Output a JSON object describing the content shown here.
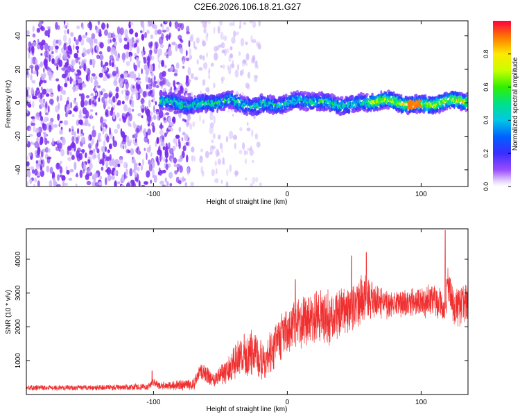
{
  "figure_title": "C2E6.2026.106.18.21.G27",
  "chart_data": [
    {
      "type": "heatmap",
      "title": "C2E6.2026.106.18.21.G27",
      "xlabel": "Height of straight line (km)",
      "ylabel": "Frequency (Hz)",
      "xlim": [
        -195,
        135
      ],
      "ylim": [
        -50,
        49
      ],
      "xticks": [
        -100,
        0,
        100
      ],
      "yticks": [
        -40,
        -20,
        0,
        20,
        40
      ],
      "colorbar": {
        "label": "Normalized spectral amplitude",
        "range": [
          0,
          1
        ],
        "ticks": [
          0.0,
          0.2,
          0.4,
          0.6,
          0.8
        ],
        "tick_labels": [
          "0.0",
          "0.2",
          "0.4",
          "0.6",
          "0.8"
        ],
        "colormap": "rainbow"
      },
      "signal_band": {
        "start_x": -95,
        "center_hz": 0,
        "halfwidth_hz": 5
      },
      "noise_region": {
        "x_end": -73,
        "dense_x_end": -73,
        "sparse_x_end": -20
      },
      "colors": {
        "noise": "#7a2cf0",
        "noise_light": "#cdb4fa"
      }
    },
    {
      "type": "line",
      "xlabel": "Height of straight line (km)",
      "ylabel": "SNR (10 * v/v)",
      "xlim": [
        -195,
        135
      ],
      "ylim": [
        0,
        4900
      ],
      "xticks": [
        -100,
        0,
        100
      ],
      "yticks": [
        1000,
        2000,
        3000,
        4000
      ],
      "color": "#f03030",
      "envelope": {
        "x": [
          -195,
          -150,
          -105,
          -100,
          -95,
          -70,
          -65,
          -55,
          -45,
          -35,
          -25,
          -15,
          -5,
          5,
          15,
          25,
          35,
          45,
          55,
          62,
          70,
          80,
          90,
          100,
          110,
          118,
          120,
          125,
          135
        ],
        "center": [
          200,
          200,
          220,
          350,
          250,
          300,
          700,
          450,
          700,
          1100,
          1200,
          1050,
          1700,
          2100,
          2200,
          2300,
          2300,
          2500,
          2800,
          2900,
          2700,
          2650,
          2750,
          2700,
          2800,
          2600,
          3200,
          2500,
          2700
        ],
        "spread": [
          90,
          90,
          110,
          150,
          120,
          200,
          300,
          250,
          450,
          650,
          750,
          750,
          800,
          800,
          850,
          850,
          900,
          900,
          800,
          750,
          500,
          450,
          450,
          500,
          500,
          600,
          600,
          650,
          700
        ]
      },
      "peaks": [
        {
          "x": 118,
          "y": 4850
        },
        {
          "x": 59,
          "y": 4200
        },
        {
          "x": 48,
          "y": 4100
        },
        {
          "x": 6,
          "y": 3400
        },
        {
          "x": -101,
          "y": 700
        }
      ]
    }
  ]
}
